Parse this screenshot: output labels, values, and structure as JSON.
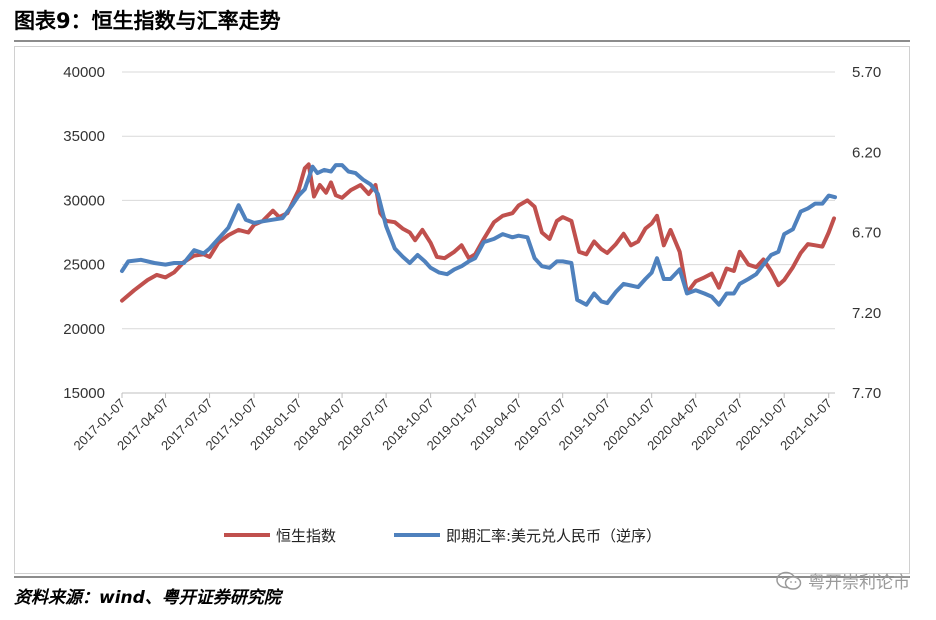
{
  "title": "图表9：恒生指数与汇率走势",
  "source": "资料来源：wind、粤开证券研究院",
  "watermark": "粤开崇利论市",
  "colors": {
    "hsi": "#c0504d",
    "fx": "#4f81bd",
    "grid": "#d9d9d9"
  },
  "chart_data": {
    "type": "line",
    "title": "",
    "left_axis": {
      "min": 15000,
      "max": 40000,
      "ticks": [
        "15000",
        "20000",
        "25000",
        "30000",
        "35000",
        "40000"
      ]
    },
    "right_axis": {
      "min": 5.7,
      "max": 7.7,
      "inverted": true,
      "ticks": [
        "5.70",
        "6.20",
        "6.70",
        "7.20",
        "7.70"
      ]
    },
    "x_ticks": [
      "2017-01-07",
      "2017-04-07",
      "2017-07-07",
      "2017-10-07",
      "2018-01-07",
      "2018-04-07",
      "2018-07-07",
      "2018-10-07",
      "2019-01-07",
      "2019-04-07",
      "2019-07-07",
      "2019-10-07",
      "2020-01-07",
      "2020-04-07",
      "2020-07-07",
      "2020-10-07",
      "2021-01-07"
    ],
    "x_range": [
      "2017-01-07",
      "2021-01-20"
    ],
    "grid": "horizontal",
    "legend_position": "bottom",
    "series": [
      {
        "name": "恒生指数",
        "axis": "left",
        "points": [
          [
            "2017-01-07",
            22200
          ],
          [
            "2017-02-01",
            23000
          ],
          [
            "2017-03-01",
            23800
          ],
          [
            "2017-03-20",
            24200
          ],
          [
            "2017-04-07",
            24000
          ],
          [
            "2017-04-25",
            24400
          ],
          [
            "2017-05-15",
            25200
          ],
          [
            "2017-06-05",
            25700
          ],
          [
            "2017-06-25",
            25800
          ],
          [
            "2017-07-07",
            25600
          ],
          [
            "2017-07-25",
            26700
          ],
          [
            "2017-08-15",
            27300
          ],
          [
            "2017-09-05",
            27700
          ],
          [
            "2017-09-25",
            27500
          ],
          [
            "2017-10-07",
            28100
          ],
          [
            "2017-10-25",
            28400
          ],
          [
            "2017-11-15",
            29200
          ],
          [
            "2017-11-28",
            28700
          ],
          [
            "2017-12-15",
            29000
          ],
          [
            "2018-01-07",
            30800
          ],
          [
            "2018-01-20",
            32500
          ],
          [
            "2018-01-28",
            32800
          ],
          [
            "2018-02-08",
            30300
          ],
          [
            "2018-02-20",
            31200
          ],
          [
            "2018-03-05",
            30600
          ],
          [
            "2018-03-15",
            31400
          ],
          [
            "2018-03-25",
            30400
          ],
          [
            "2018-04-07",
            30200
          ],
          [
            "2018-04-25",
            30800
          ],
          [
            "2018-05-15",
            31200
          ],
          [
            "2018-06-01",
            30500
          ],
          [
            "2018-06-15",
            31200
          ],
          [
            "2018-06-25",
            29000
          ],
          [
            "2018-07-07",
            28400
          ],
          [
            "2018-07-25",
            28300
          ],
          [
            "2018-08-10",
            27800
          ],
          [
            "2018-08-25",
            27500
          ],
          [
            "2018-09-05",
            26900
          ],
          [
            "2018-09-20",
            27700
          ],
          [
            "2018-10-07",
            26700
          ],
          [
            "2018-10-20",
            25600
          ],
          [
            "2018-11-05",
            25500
          ],
          [
            "2018-11-25",
            26000
          ],
          [
            "2018-12-10",
            26500
          ],
          [
            "2018-12-25",
            25500
          ],
          [
            "2019-01-07",
            25800
          ],
          [
            "2019-01-25",
            27000
          ],
          [
            "2019-02-15",
            28300
          ],
          [
            "2019-03-05",
            28800
          ],
          [
            "2019-03-25",
            29000
          ],
          [
            "2019-04-07",
            29600
          ],
          [
            "2019-04-25",
            30000
          ],
          [
            "2019-05-10",
            29500
          ],
          [
            "2019-05-25",
            27500
          ],
          [
            "2019-06-10",
            27000
          ],
          [
            "2019-06-25",
            28400
          ],
          [
            "2019-07-07",
            28700
          ],
          [
            "2019-07-25",
            28400
          ],
          [
            "2019-08-10",
            26000
          ],
          [
            "2019-08-25",
            25800
          ],
          [
            "2019-09-10",
            26800
          ],
          [
            "2019-09-25",
            26200
          ],
          [
            "2019-10-07",
            25900
          ],
          [
            "2019-10-25",
            26600
          ],
          [
            "2019-11-10",
            27400
          ],
          [
            "2019-11-25",
            26500
          ],
          [
            "2019-12-10",
            26800
          ],
          [
            "2019-12-25",
            27800
          ],
          [
            "2020-01-07",
            28200
          ],
          [
            "2020-01-18",
            28800
          ],
          [
            "2020-02-01",
            26500
          ],
          [
            "2020-02-15",
            27700
          ],
          [
            "2020-03-05",
            26000
          ],
          [
            "2020-03-20",
            22800
          ],
          [
            "2020-04-07",
            23700
          ],
          [
            "2020-04-25",
            24000
          ],
          [
            "2020-05-10",
            24300
          ],
          [
            "2020-05-25",
            23200
          ],
          [
            "2020-06-10",
            24700
          ],
          [
            "2020-06-25",
            24500
          ],
          [
            "2020-07-07",
            26000
          ],
          [
            "2020-07-25",
            25000
          ],
          [
            "2020-08-10",
            24800
          ],
          [
            "2020-08-25",
            25400
          ],
          [
            "2020-09-10",
            24500
          ],
          [
            "2020-09-25",
            23400
          ],
          [
            "2020-10-07",
            23800
          ],
          [
            "2020-10-25",
            24800
          ],
          [
            "2020-11-10",
            25900
          ],
          [
            "2020-11-25",
            26600
          ],
          [
            "2020-12-10",
            26500
          ],
          [
            "2020-12-25",
            26400
          ],
          [
            "2021-01-07",
            27500
          ],
          [
            "2021-01-18",
            28600
          ]
        ]
      },
      {
        "name": "即期汇率:美元兑人民币（逆序）",
        "axis": "right",
        "points": [
          [
            "2017-01-07",
            6.94
          ],
          [
            "2017-01-20",
            6.88
          ],
          [
            "2017-02-15",
            6.87
          ],
          [
            "2017-03-15",
            6.89
          ],
          [
            "2017-04-07",
            6.9
          ],
          [
            "2017-04-25",
            6.89
          ],
          [
            "2017-05-15",
            6.89
          ],
          [
            "2017-06-05",
            6.81
          ],
          [
            "2017-06-25",
            6.83
          ],
          [
            "2017-07-07",
            6.8
          ],
          [
            "2017-07-25",
            6.74
          ],
          [
            "2017-08-15",
            6.67
          ],
          [
            "2017-09-05",
            6.53
          ],
          [
            "2017-09-20",
            6.62
          ],
          [
            "2017-10-07",
            6.64
          ],
          [
            "2017-10-25",
            6.63
          ],
          [
            "2017-11-15",
            6.62
          ],
          [
            "2017-12-05",
            6.61
          ],
          [
            "2017-12-25",
            6.53
          ],
          [
            "2018-01-07",
            6.47
          ],
          [
            "2018-01-20",
            6.43
          ],
          [
            "2018-02-05",
            6.29
          ],
          [
            "2018-02-15",
            6.33
          ],
          [
            "2018-03-01",
            6.31
          ],
          [
            "2018-03-15",
            6.32
          ],
          [
            "2018-03-25",
            6.28
          ],
          [
            "2018-04-07",
            6.28
          ],
          [
            "2018-04-20",
            6.32
          ],
          [
            "2018-05-05",
            6.33
          ],
          [
            "2018-05-20",
            6.37
          ],
          [
            "2018-06-05",
            6.4
          ],
          [
            "2018-06-20",
            6.46
          ],
          [
            "2018-07-07",
            6.66
          ],
          [
            "2018-07-25",
            6.8
          ],
          [
            "2018-08-10",
            6.85
          ],
          [
            "2018-08-25",
            6.89
          ],
          [
            "2018-09-10",
            6.84
          ],
          [
            "2018-09-25",
            6.88
          ],
          [
            "2018-10-07",
            6.92
          ],
          [
            "2018-10-25",
            6.95
          ],
          [
            "2018-11-10",
            6.96
          ],
          [
            "2018-11-25",
            6.93
          ],
          [
            "2018-12-10",
            6.91
          ],
          [
            "2018-12-25",
            6.88
          ],
          [
            "2019-01-07",
            6.86
          ],
          [
            "2019-01-25",
            6.76
          ],
          [
            "2019-02-15",
            6.74
          ],
          [
            "2019-03-05",
            6.71
          ],
          [
            "2019-03-25",
            6.73
          ],
          [
            "2019-04-07",
            6.72
          ],
          [
            "2019-04-25",
            6.73
          ],
          [
            "2019-05-10",
            6.86
          ],
          [
            "2019-05-25",
            6.91
          ],
          [
            "2019-06-10",
            6.92
          ],
          [
            "2019-06-25",
            6.88
          ],
          [
            "2019-07-07",
            6.88
          ],
          [
            "2019-07-25",
            6.89
          ],
          [
            "2019-08-06",
            7.12
          ],
          [
            "2019-08-25",
            7.15
          ],
          [
            "2019-09-10",
            7.08
          ],
          [
            "2019-09-25",
            7.13
          ],
          [
            "2019-10-07",
            7.14
          ],
          [
            "2019-10-25",
            7.07
          ],
          [
            "2019-11-10",
            7.02
          ],
          [
            "2019-11-25",
            7.03
          ],
          [
            "2019-12-10",
            7.04
          ],
          [
            "2019-12-25",
            6.99
          ],
          [
            "2020-01-07",
            6.95
          ],
          [
            "2020-01-18",
            6.86
          ],
          [
            "2020-02-01",
            6.99
          ],
          [
            "2020-02-15",
            6.99
          ],
          [
            "2020-03-05",
            6.93
          ],
          [
            "2020-03-20",
            7.08
          ],
          [
            "2020-04-07",
            7.06
          ],
          [
            "2020-04-25",
            7.08
          ],
          [
            "2020-05-10",
            7.1
          ],
          [
            "2020-05-25",
            7.15
          ],
          [
            "2020-06-10",
            7.08
          ],
          [
            "2020-06-25",
            7.08
          ],
          [
            "2020-07-07",
            7.02
          ],
          [
            "2020-07-25",
            6.99
          ],
          [
            "2020-08-10",
            6.96
          ],
          [
            "2020-08-25",
            6.9
          ],
          [
            "2020-09-10",
            6.84
          ],
          [
            "2020-09-25",
            6.82
          ],
          [
            "2020-10-07",
            6.71
          ],
          [
            "2020-10-25",
            6.68
          ],
          [
            "2020-11-10",
            6.57
          ],
          [
            "2020-11-25",
            6.55
          ],
          [
            "2020-12-10",
            6.52
          ],
          [
            "2020-12-25",
            6.52
          ],
          [
            "2021-01-07",
            6.47
          ],
          [
            "2021-01-20",
            6.48
          ]
        ]
      }
    ]
  }
}
